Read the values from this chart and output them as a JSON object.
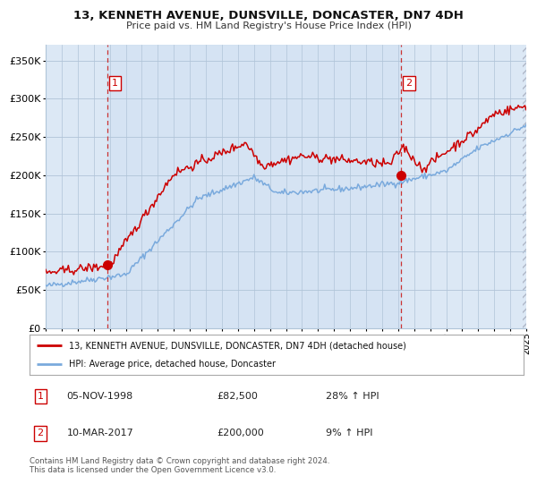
{
  "title": "13, KENNETH AVENUE, DUNSVILLE, DONCASTER, DN7 4DH",
  "subtitle": "Price paid vs. HM Land Registry's House Price Index (HPI)",
  "legend_line1": "13, KENNETH AVENUE, DUNSVILLE, DONCASTER, DN7 4DH (detached house)",
  "legend_line2": "HPI: Average price, detached house, Doncaster",
  "annotation1_label": "1",
  "annotation1_date": "05-NOV-1998",
  "annotation1_price": "£82,500",
  "annotation1_hpi": "28% ↑ HPI",
  "annotation2_label": "2",
  "annotation2_date": "10-MAR-2017",
  "annotation2_price": "£200,000",
  "annotation2_hpi": "9% ↑ HPI",
  "footnote": "Contains HM Land Registry data © Crown copyright and database right 2024.\nThis data is licensed under the Open Government Licence v3.0.",
  "red_color": "#cc0000",
  "blue_color": "#7aaadd",
  "bg_color": "#dce8f5",
  "grid_color": "#b0c4d8",
  "dashed_line_color": "#cc3333",
  "ylim": [
    0,
    370000
  ],
  "yticks": [
    0,
    50000,
    100000,
    150000,
    200000,
    250000,
    300000,
    350000
  ],
  "sale1_x": 1998.84,
  "sale1_y": 82500,
  "sale2_x": 2017.19,
  "sale2_y": 200000,
  "xmin": 1995,
  "xmax": 2025
}
